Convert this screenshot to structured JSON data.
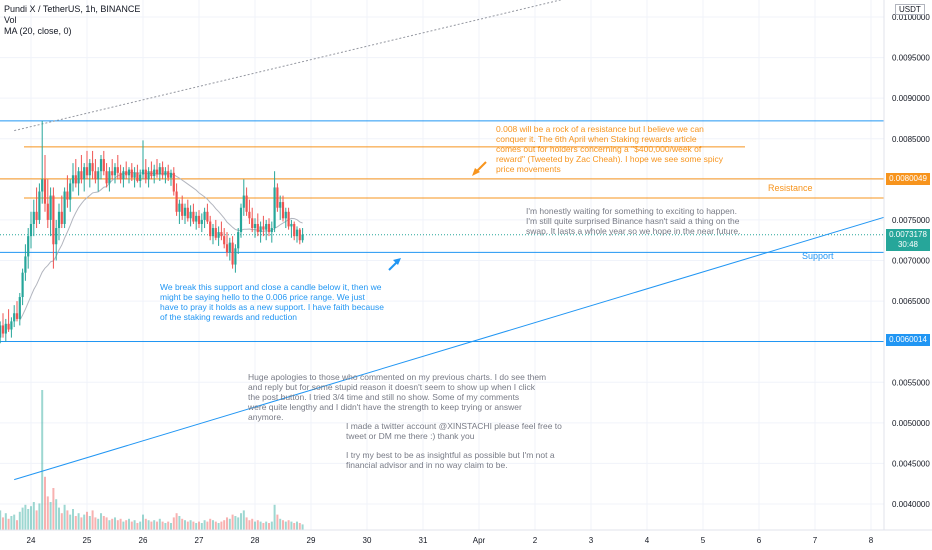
{
  "legend": {
    "symbol": "Pundi X / TetherUS, 1h, BINANCE",
    "vol": "Vol",
    "ma": "MA (20, close, 0)"
  },
  "currency": "USDT",
  "annotations": {
    "orange_note": "0.008 will be a rock of a resistance but I believe we can\nconquer it. The 6th April when Staking rewards article\ncomes out for holders concerning a \"$400,000/week of\nreward\" (Tweeted by Zac Cheah). I hope we see some spicy\nprice movements",
    "gray_right_note": "I'm honestly waiting for something to exciting to happen.\nI'm still quite surprised Binance hasn't said a thing on the\nswap. It lasts a whole year so we hope in the near future.",
    "blue_note": "We break this support and close a candle below it, then we\nmight be saying hello to the  0.006 price range. We just\nhave to pray it holds as a new support. I have faith because\nof the staking rewards and reduction",
    "gray_apology": "Huge apologies to those who commented on my previous charts. I do see them\nand reply but for some stupid reason it doesn't seem to show up when I click\nthe post button. I tried 3/4 time and still no show. Some of my comments\nwere quite lengthy and I didn't have the strength to keep trying or answer\nanymore.",
    "gray_twitter": "I made a twitter account @XINSTACHI please feel free to\ntweet or DM me there :) thank you",
    "gray_disclaimer": "I try my best to be as insightful as possible but I'm not a\nfinancial advisor and in no way claim to be.",
    "resistance_label": "Resistance",
    "support_label": "Support"
  },
  "price_tags": {
    "resistance": "0.0080049",
    "current": "0.0073178",
    "countdown": "30:48",
    "low_level": "0.0060014"
  },
  "colors": {
    "bull": "#26a69a",
    "bear": "#ef5350",
    "orange": "#f7941d",
    "blue": "#2196f3",
    "ma": "#b2b5be"
  },
  "chart_data": {
    "type": "candlestick",
    "y_ticks": [
      "0.0100000",
      "0.0095000",
      "0.0090000",
      "0.0085000",
      "0.0080000",
      "0.0075000",
      "0.0070000",
      "0.0065000",
      "0.0060000",
      "0.0055000",
      "0.0050000",
      "0.0045000",
      "0.0040000"
    ],
    "x_ticks": [
      "24",
      "25",
      "26",
      "27",
      "28",
      "29",
      "30",
      "31",
      "Apr",
      "2",
      "3",
      "4",
      "5",
      "6",
      "7",
      "8"
    ],
    "ylim": [
      0.0037,
      0.0102
    ],
    "levels": [
      {
        "name": "top",
        "price": 0.00872,
        "color": "#2196f3"
      },
      {
        "name": "orange-upper",
        "price": 0.0084,
        "color": "#f7941d"
      },
      {
        "name": "resistance",
        "price": 0.0080049,
        "color": "#f7941d"
      },
      {
        "name": "orange-lower",
        "price": 0.00777,
        "color": "#f7941d"
      },
      {
        "name": "support",
        "price": 0.0071,
        "color": "#2196f3"
      },
      {
        "name": "low",
        "price": 0.0060014,
        "color": "#2196f3"
      }
    ],
    "trendlines": [
      {
        "name": "blue-trendline",
        "from": [
          -0.3,
          0.0043
        ],
        "to": [
          15.8,
          0.00765
        ],
        "color": "#2196f3"
      },
      {
        "name": "gray-dotted-trendline",
        "from": [
          -0.3,
          0.0086
        ],
        "to": [
          10.0,
          0.0103
        ],
        "color": "#9598a1"
      }
    ],
    "current_price": 0.0073178,
    "candles": [
      {
        "t": -0.55,
        "o": 0.00605,
        "h": 0.00625,
        "l": 0.00598,
        "c": 0.0062,
        "v": 14
      },
      {
        "t": -0.5,
        "o": 0.0062,
        "h": 0.00635,
        "l": 0.00605,
        "c": 0.0061,
        "v": 9
      },
      {
        "t": -0.45,
        "o": 0.0061,
        "h": 0.00628,
        "l": 0.006,
        "c": 0.00622,
        "v": 12
      },
      {
        "t": -0.4,
        "o": 0.00622,
        "h": 0.0064,
        "l": 0.00612,
        "c": 0.00615,
        "v": 8
      },
      {
        "t": -0.35,
        "o": 0.00615,
        "h": 0.0063,
        "l": 0.00605,
        "c": 0.00625,
        "v": 10
      },
      {
        "t": -0.3,
        "o": 0.00625,
        "h": 0.00645,
        "l": 0.00618,
        "c": 0.00635,
        "v": 11
      },
      {
        "t": -0.25,
        "o": 0.00635,
        "h": 0.0065,
        "l": 0.00625,
        "c": 0.00628,
        "v": 7
      },
      {
        "t": -0.2,
        "o": 0.00628,
        "h": 0.0066,
        "l": 0.0062,
        "c": 0.00655,
        "v": 13
      },
      {
        "t": -0.15,
        "o": 0.00655,
        "h": 0.0069,
        "l": 0.00645,
        "c": 0.00685,
        "v": 16
      },
      {
        "t": -0.1,
        "o": 0.00685,
        "h": 0.0072,
        "l": 0.00675,
        "c": 0.00705,
        "v": 18
      },
      {
        "t": -0.05,
        "o": 0.00705,
        "h": 0.0074,
        "l": 0.0069,
        "c": 0.0073,
        "v": 15
      },
      {
        "t": 0.0,
        "o": 0.0073,
        "h": 0.0076,
        "l": 0.00715,
        "c": 0.00745,
        "v": 17
      },
      {
        "t": 0.05,
        "o": 0.00745,
        "h": 0.00775,
        "l": 0.0073,
        "c": 0.0076,
        "v": 20
      },
      {
        "t": 0.1,
        "o": 0.0076,
        "h": 0.0079,
        "l": 0.0074,
        "c": 0.0075,
        "v": 14
      },
      {
        "t": 0.15,
        "o": 0.0075,
        "h": 0.00795,
        "l": 0.00745,
        "c": 0.00785,
        "v": 19
      },
      {
        "t": 0.2,
        "o": 0.00785,
        "h": 0.00872,
        "l": 0.0077,
        "c": 0.008,
        "v": 100
      },
      {
        "t": 0.25,
        "o": 0.008,
        "h": 0.0083,
        "l": 0.0076,
        "c": 0.0077,
        "v": 38
      },
      {
        "t": 0.3,
        "o": 0.0077,
        "h": 0.008,
        "l": 0.0074,
        "c": 0.0075,
        "v": 24
      },
      {
        "t": 0.35,
        "o": 0.0075,
        "h": 0.0079,
        "l": 0.0073,
        "c": 0.0078,
        "v": 20
      },
      {
        "t": 0.4,
        "o": 0.0078,
        "h": 0.0079,
        "l": 0.0069,
        "c": 0.0072,
        "v": 30
      },
      {
        "t": 0.45,
        "o": 0.0072,
        "h": 0.0075,
        "l": 0.007,
        "c": 0.0074,
        "v": 22
      },
      {
        "t": 0.5,
        "o": 0.0074,
        "h": 0.0077,
        "l": 0.00725,
        "c": 0.0076,
        "v": 16
      },
      {
        "t": 0.55,
        "o": 0.0076,
        "h": 0.0078,
        "l": 0.0074,
        "c": 0.00745,
        "v": 12
      },
      {
        "t": 0.6,
        "o": 0.00745,
        "h": 0.0079,
        "l": 0.0074,
        "c": 0.00785,
        "v": 18
      },
      {
        "t": 0.65,
        "o": 0.00785,
        "h": 0.00805,
        "l": 0.00765,
        "c": 0.00775,
        "v": 14
      },
      {
        "t": 0.7,
        "o": 0.00775,
        "h": 0.008,
        "l": 0.0076,
        "c": 0.00795,
        "v": 11
      },
      {
        "t": 0.75,
        "o": 0.00795,
        "h": 0.0082,
        "l": 0.00785,
        "c": 0.00805,
        "v": 15
      },
      {
        "t": 0.8,
        "o": 0.00805,
        "h": 0.00825,
        "l": 0.0079,
        "c": 0.00795,
        "v": 10
      },
      {
        "t": 0.85,
        "o": 0.00795,
        "h": 0.00815,
        "l": 0.0078,
        "c": 0.0081,
        "v": 12
      },
      {
        "t": 0.9,
        "o": 0.0081,
        "h": 0.0083,
        "l": 0.00795,
        "c": 0.008,
        "v": 9
      },
      {
        "t": 0.95,
        "o": 0.008,
        "h": 0.0082,
        "l": 0.00785,
        "c": 0.00815,
        "v": 11
      },
      {
        "t": 1.0,
        "o": 0.00815,
        "h": 0.00835,
        "l": 0.008,
        "c": 0.00805,
        "v": 13
      },
      {
        "t": 1.05,
        "o": 0.00805,
        "h": 0.00825,
        "l": 0.0079,
        "c": 0.0082,
        "v": 10
      },
      {
        "t": 1.1,
        "o": 0.0082,
        "h": 0.00835,
        "l": 0.008,
        "c": 0.0081,
        "v": 14
      },
      {
        "t": 1.15,
        "o": 0.0081,
        "h": 0.00825,
        "l": 0.00795,
        "c": 0.008,
        "v": 9
      },
      {
        "t": 1.2,
        "o": 0.008,
        "h": 0.00815,
        "l": 0.00785,
        "c": 0.0081,
        "v": 8
      },
      {
        "t": 1.25,
        "o": 0.0081,
        "h": 0.0083,
        "l": 0.008,
        "c": 0.00825,
        "v": 12
      },
      {
        "t": 1.3,
        "o": 0.00825,
        "h": 0.00835,
        "l": 0.00805,
        "c": 0.0081,
        "v": 10
      },
      {
        "t": 1.35,
        "o": 0.0081,
        "h": 0.0082,
        "l": 0.0079,
        "c": 0.00795,
        "v": 9
      },
      {
        "t": 1.4,
        "o": 0.00795,
        "h": 0.00815,
        "l": 0.00785,
        "c": 0.0081,
        "v": 7
      },
      {
        "t": 1.45,
        "o": 0.0081,
        "h": 0.00825,
        "l": 0.008,
        "c": 0.00805,
        "v": 8
      },
      {
        "t": 1.5,
        "o": 0.00805,
        "h": 0.0082,
        "l": 0.00795,
        "c": 0.00815,
        "v": 9
      },
      {
        "t": 1.55,
        "o": 0.00815,
        "h": 0.0083,
        "l": 0.008,
        "c": 0.00808,
        "v": 7
      },
      {
        "t": 1.6,
        "o": 0.00808,
        "h": 0.00818,
        "l": 0.00795,
        "c": 0.008,
        "v": 8
      },
      {
        "t": 1.65,
        "o": 0.008,
        "h": 0.00815,
        "l": 0.0079,
        "c": 0.0081,
        "v": 6
      },
      {
        "t": 1.7,
        "o": 0.0081,
        "h": 0.00822,
        "l": 0.008,
        "c": 0.00805,
        "v": 7
      },
      {
        "t": 1.75,
        "o": 0.00805,
        "h": 0.00815,
        "l": 0.00795,
        "c": 0.00812,
        "v": 8
      },
      {
        "t": 1.8,
        "o": 0.00812,
        "h": 0.0082,
        "l": 0.00798,
        "c": 0.00802,
        "v": 6
      },
      {
        "t": 1.85,
        "o": 0.00802,
        "h": 0.00815,
        "l": 0.0079,
        "c": 0.00808,
        "v": 7
      },
      {
        "t": 1.9,
        "o": 0.00808,
        "h": 0.00818,
        "l": 0.00796,
        "c": 0.00798,
        "v": 5
      },
      {
        "t": 1.95,
        "o": 0.00798,
        "h": 0.00812,
        "l": 0.0079,
        "c": 0.00806,
        "v": 6
      },
      {
        "t": 2.0,
        "o": 0.00806,
        "h": 0.00848,
        "l": 0.008,
        "c": 0.00812,
        "v": 11
      },
      {
        "t": 2.05,
        "o": 0.00812,
        "h": 0.00825,
        "l": 0.00795,
        "c": 0.008,
        "v": 8
      },
      {
        "t": 2.1,
        "o": 0.008,
        "h": 0.00815,
        "l": 0.0079,
        "c": 0.0081,
        "v": 7
      },
      {
        "t": 2.15,
        "o": 0.0081,
        "h": 0.00822,
        "l": 0.008,
        "c": 0.00804,
        "v": 6
      },
      {
        "t": 2.2,
        "o": 0.00804,
        "h": 0.00818,
        "l": 0.00795,
        "c": 0.00812,
        "v": 7
      },
      {
        "t": 2.25,
        "o": 0.00812,
        "h": 0.00825,
        "l": 0.00802,
        "c": 0.00806,
        "v": 6
      },
      {
        "t": 2.3,
        "o": 0.00806,
        "h": 0.0082,
        "l": 0.00798,
        "c": 0.00815,
        "v": 8
      },
      {
        "t": 2.35,
        "o": 0.00815,
        "h": 0.00822,
        "l": 0.008,
        "c": 0.00805,
        "v": 6
      },
      {
        "t": 2.4,
        "o": 0.00805,
        "h": 0.00815,
        "l": 0.00795,
        "c": 0.0081,
        "v": 5
      },
      {
        "t": 2.45,
        "o": 0.0081,
        "h": 0.00818,
        "l": 0.00798,
        "c": 0.00802,
        "v": 6
      },
      {
        "t": 2.5,
        "o": 0.00802,
        "h": 0.00812,
        "l": 0.00792,
        "c": 0.00808,
        "v": 5
      },
      {
        "t": 2.55,
        "o": 0.00808,
        "h": 0.00815,
        "l": 0.0078,
        "c": 0.00785,
        "v": 9
      },
      {
        "t": 2.6,
        "o": 0.00785,
        "h": 0.00795,
        "l": 0.00755,
        "c": 0.0076,
        "v": 12
      },
      {
        "t": 2.65,
        "o": 0.0076,
        "h": 0.00775,
        "l": 0.00745,
        "c": 0.0077,
        "v": 10
      },
      {
        "t": 2.7,
        "o": 0.0077,
        "h": 0.0078,
        "l": 0.0075,
        "c": 0.00755,
        "v": 8
      },
      {
        "t": 2.75,
        "o": 0.00755,
        "h": 0.0077,
        "l": 0.00745,
        "c": 0.00765,
        "v": 7
      },
      {
        "t": 2.8,
        "o": 0.00765,
        "h": 0.00775,
        "l": 0.00748,
        "c": 0.00752,
        "v": 6
      },
      {
        "t": 2.85,
        "o": 0.00752,
        "h": 0.00768,
        "l": 0.00742,
        "c": 0.0076,
        "v": 7
      },
      {
        "t": 2.9,
        "o": 0.0076,
        "h": 0.0077,
        "l": 0.00745,
        "c": 0.00748,
        "v": 6
      },
      {
        "t": 2.95,
        "o": 0.00748,
        "h": 0.0076,
        "l": 0.00738,
        "c": 0.00755,
        "v": 5
      },
      {
        "t": 3.0,
        "o": 0.00755,
        "h": 0.00762,
        "l": 0.0074,
        "c": 0.00745,
        "v": 6
      },
      {
        "t": 3.05,
        "o": 0.00745,
        "h": 0.00758,
        "l": 0.00735,
        "c": 0.0075,
        "v": 5
      },
      {
        "t": 3.1,
        "o": 0.0075,
        "h": 0.00765,
        "l": 0.0074,
        "c": 0.0076,
        "v": 7
      },
      {
        "t": 3.15,
        "o": 0.0076,
        "h": 0.0077,
        "l": 0.00745,
        "c": 0.00748,
        "v": 6
      },
      {
        "t": 3.2,
        "o": 0.00748,
        "h": 0.00755,
        "l": 0.00725,
        "c": 0.0073,
        "v": 8
      },
      {
        "t": 3.25,
        "o": 0.0073,
        "h": 0.00745,
        "l": 0.0072,
        "c": 0.0074,
        "v": 7
      },
      {
        "t": 3.3,
        "o": 0.0074,
        "h": 0.0075,
        "l": 0.00725,
        "c": 0.00728,
        "v": 6
      },
      {
        "t": 3.35,
        "o": 0.00728,
        "h": 0.00742,
        "l": 0.00718,
        "c": 0.00735,
        "v": 5
      },
      {
        "t": 3.4,
        "o": 0.00735,
        "h": 0.00748,
        "l": 0.00725,
        "c": 0.0073,
        "v": 6
      },
      {
        "t": 3.45,
        "o": 0.0073,
        "h": 0.0074,
        "l": 0.00715,
        "c": 0.0072,
        "v": 7
      },
      {
        "t": 3.5,
        "o": 0.0072,
        "h": 0.00735,
        "l": 0.00705,
        "c": 0.0071,
        "v": 9
      },
      {
        "t": 3.55,
        "o": 0.0071,
        "h": 0.00728,
        "l": 0.007,
        "c": 0.00722,
        "v": 8
      },
      {
        "t": 3.6,
        "o": 0.00722,
        "h": 0.0073,
        "l": 0.0069,
        "c": 0.00695,
        "v": 11
      },
      {
        "t": 3.65,
        "o": 0.00695,
        "h": 0.0072,
        "l": 0.00685,
        "c": 0.00715,
        "v": 10
      },
      {
        "t": 3.7,
        "o": 0.00715,
        "h": 0.0074,
        "l": 0.00708,
        "c": 0.00735,
        "v": 9
      },
      {
        "t": 3.75,
        "o": 0.00735,
        "h": 0.0077,
        "l": 0.00728,
        "c": 0.00765,
        "v": 12
      },
      {
        "t": 3.8,
        "o": 0.00765,
        "h": 0.008,
        "l": 0.00755,
        "c": 0.0078,
        "v": 14
      },
      {
        "t": 3.85,
        "o": 0.0078,
        "h": 0.0079,
        "l": 0.00755,
        "c": 0.0076,
        "v": 9
      },
      {
        "t": 3.9,
        "o": 0.0076,
        "h": 0.00775,
        "l": 0.00745,
        "c": 0.00752,
        "v": 7
      },
      {
        "t": 3.95,
        "o": 0.00752,
        "h": 0.00765,
        "l": 0.00735,
        "c": 0.0074,
        "v": 8
      },
      {
        "t": 4.0,
        "o": 0.0074,
        "h": 0.00752,
        "l": 0.00728,
        "c": 0.00745,
        "v": 6
      },
      {
        "t": 4.05,
        "o": 0.00745,
        "h": 0.00758,
        "l": 0.0073,
        "c": 0.00735,
        "v": 7
      },
      {
        "t": 4.1,
        "o": 0.00735,
        "h": 0.00748,
        "l": 0.00722,
        "c": 0.00742,
        "v": 6
      },
      {
        "t": 4.15,
        "o": 0.00742,
        "h": 0.00755,
        "l": 0.0073,
        "c": 0.00738,
        "v": 5
      },
      {
        "t": 4.2,
        "o": 0.00738,
        "h": 0.0075,
        "l": 0.00725,
        "c": 0.00745,
        "v": 6
      },
      {
        "t": 4.25,
        "o": 0.00745,
        "h": 0.00752,
        "l": 0.0073,
        "c": 0.00735,
        "v": 5
      },
      {
        "t": 4.3,
        "o": 0.00735,
        "h": 0.00748,
        "l": 0.00722,
        "c": 0.0074,
        "v": 6
      },
      {
        "t": 4.35,
        "o": 0.0074,
        "h": 0.0081,
        "l": 0.00735,
        "c": 0.0079,
        "v": 18
      },
      {
        "t": 4.4,
        "o": 0.0079,
        "h": 0.00795,
        "l": 0.0076,
        "c": 0.00765,
        "v": 11
      },
      {
        "t": 4.45,
        "o": 0.00765,
        "h": 0.0078,
        "l": 0.0075,
        "c": 0.00772,
        "v": 8
      },
      {
        "t": 4.5,
        "o": 0.00772,
        "h": 0.0078,
        "l": 0.00748,
        "c": 0.00752,
        "v": 7
      },
      {
        "t": 4.55,
        "o": 0.00752,
        "h": 0.00765,
        "l": 0.0074,
        "c": 0.0076,
        "v": 6
      },
      {
        "t": 4.6,
        "o": 0.0076,
        "h": 0.00765,
        "l": 0.00738,
        "c": 0.00742,
        "v": 7
      },
      {
        "t": 4.65,
        "o": 0.00742,
        "h": 0.0075,
        "l": 0.00728,
        "c": 0.00745,
        "v": 6
      },
      {
        "t": 4.7,
        "o": 0.00745,
        "h": 0.00748,
        "l": 0.00725,
        "c": 0.0073,
        "v": 5
      },
      {
        "t": 4.75,
        "o": 0.0073,
        "h": 0.00742,
        "l": 0.00722,
        "c": 0.00738,
        "v": 6
      },
      {
        "t": 4.8,
        "o": 0.00738,
        "h": 0.0074,
        "l": 0.0072,
        "c": 0.00725,
        "v": 5
      },
      {
        "t": 4.85,
        "o": 0.00725,
        "h": 0.0074,
        "l": 0.00722,
        "c": 0.00732,
        "v": 4
      }
    ]
  }
}
